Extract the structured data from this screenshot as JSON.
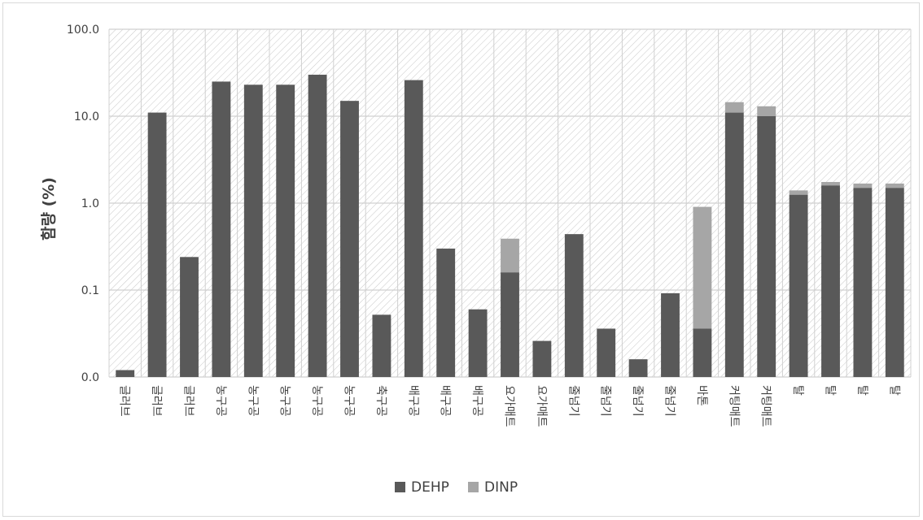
{
  "chart_data": {
    "type": "bar",
    "stacked": true,
    "y_scale": "log",
    "ylim": [
      0.01,
      100
    ],
    "ylabel": "함량 (%)",
    "xlabel": "",
    "grid": true,
    "legend_position": "bottom",
    "y_tick_labels": [
      "100.0",
      "10.0",
      "1.0",
      "0.1",
      "0.0"
    ],
    "y_tick_values": [
      100,
      10,
      1,
      0.1,
      0.01
    ],
    "categories": [
      "글러브",
      "글러브",
      "글러브",
      "농구공",
      "농구공",
      "농구공",
      "농구공",
      "농구공",
      "축구공",
      "배구공",
      "배구공",
      "배구공",
      "요가매트",
      "요가매트",
      "줄넘기",
      "줄넘기",
      "줄넘기",
      "줄넘기",
      "바톤",
      "커팅매트",
      "커팅매트",
      "탈",
      "탈",
      "탈",
      "탈"
    ],
    "series": [
      {
        "name": "DEHP",
        "color": "#595959",
        "values": [
          0.012,
          11,
          0.24,
          25,
          23,
          23,
          30,
          15,
          0.052,
          26,
          0.3,
          0.06,
          0.16,
          0.026,
          0.44,
          0.036,
          0.016,
          0.092,
          0.036,
          11,
          10,
          1.25,
          1.6,
          1.5,
          1.5
        ]
      },
      {
        "name": "DINP",
        "color": "#a6a6a6",
        "values": [
          0,
          0,
          0,
          0,
          0,
          0,
          0,
          0,
          0,
          0,
          0,
          0,
          0.23,
          0,
          0,
          0,
          0,
          0,
          0.87,
          3.5,
          3,
          0.15,
          0.15,
          0.18,
          0.18
        ]
      }
    ]
  }
}
